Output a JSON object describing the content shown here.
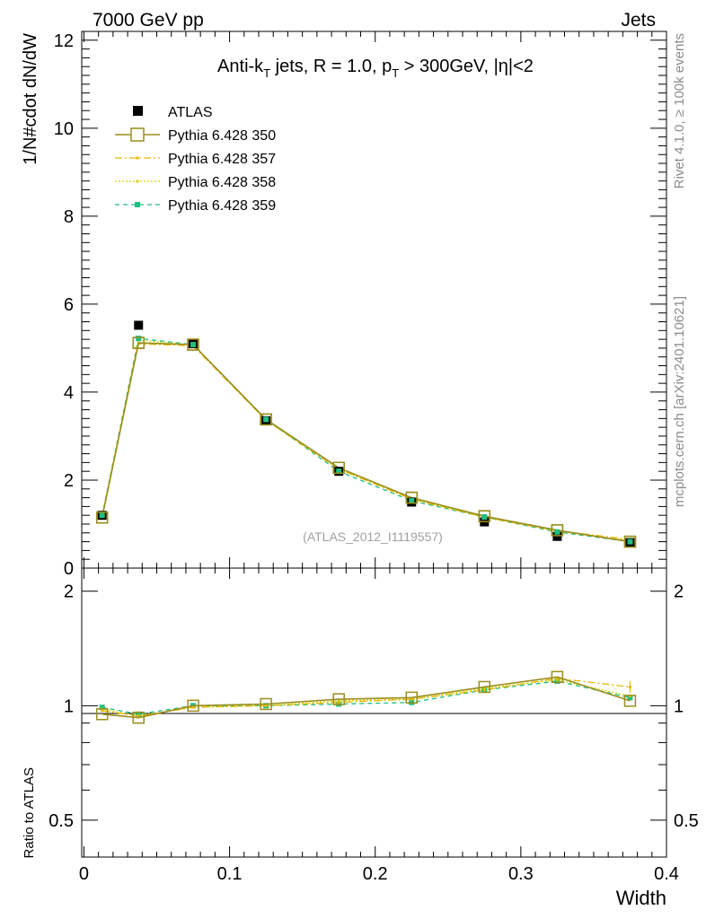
{
  "header": {
    "left": "7000 GeV pp",
    "right": "Jets"
  },
  "side_labels": {
    "rivet": "Rivet 4.1.0, ≥ 100k events",
    "mcplots": "mcplots.cern.ch [arXiv:2401.10621]"
  },
  "chart_data": {
    "type": "line",
    "title": {
      "prefix": "Anti-k",
      "sub1": "T",
      "mid": " jets, R = 1.0, p",
      "sub2": "T",
      "suffix": " > 300GeV, |η|<2"
    },
    "analysis_label": "(ATLAS_2012_I1119557)",
    "xlabel": "Width",
    "ylabel_main": "1/N#cdot dN/dW",
    "ylabel_ratio": "Ratio to ATLAS",
    "xlim": [
      -0.0015,
      0.4
    ],
    "ylim_main": [
      0,
      12.2
    ],
    "ylim_ratio_log": [
      0.4,
      2.3
    ],
    "x_ticks": [
      "0",
      "0.1",
      "0.2",
      "0.3",
      "0.4"
    ],
    "y_ticks_main": [
      "0",
      "2",
      "4",
      "6",
      "8",
      "10",
      "12"
    ],
    "y_ticks_ratio": [
      "0.5",
      "1",
      "2"
    ],
    "x": [
      0.0125,
      0.0375,
      0.075,
      0.125,
      0.175,
      0.225,
      0.275,
      0.325,
      0.375
    ],
    "data": {
      "name": "ATLAS",
      "values": [
        1.2,
        5.52,
        5.1,
        3.35,
        2.2,
        1.5,
        1.05,
        0.72,
        0.58
      ]
    },
    "series": [
      {
        "name": "Pythia 6.428 350",
        "color": "#9a8e1e",
        "values": [
          1.15,
          5.12,
          5.08,
          3.38,
          2.28,
          1.6,
          1.18,
          0.86,
          0.6
        ],
        "ratio": [
          0.95,
          0.93,
          1.0,
          1.01,
          1.04,
          1.05,
          1.12,
          1.19,
          1.03
        ]
      },
      {
        "name": "Pythia 6.428 357",
        "color": "#e6b800",
        "values": [
          1.18,
          5.1,
          5.05,
          3.36,
          2.25,
          1.57,
          1.16,
          0.85,
          0.65
        ],
        "ratio": [
          0.97,
          0.94,
          0.99,
          1.0,
          1.02,
          1.04,
          1.1,
          1.18,
          1.12
        ]
      },
      {
        "name": "Pythia 6.428 358",
        "color": "#d6d000",
        "values": [
          1.19,
          5.18,
          5.07,
          3.37,
          2.26,
          1.57,
          1.16,
          0.84,
          0.62
        ],
        "ratio": [
          0.98,
          0.94,
          0.99,
          1.0,
          1.03,
          1.04,
          1.11,
          1.17,
          1.06
        ]
      },
      {
        "name": "Pythia 6.428 359",
        "color": "#1fbf80",
        "values": [
          1.2,
          5.22,
          5.08,
          3.38,
          2.2,
          1.53,
          1.16,
          0.82,
          0.6
        ],
        "ratio": [
          0.99,
          0.95,
          1.0,
          1.0,
          1.01,
          1.02,
          1.1,
          1.16,
          1.05
        ]
      }
    ]
  }
}
